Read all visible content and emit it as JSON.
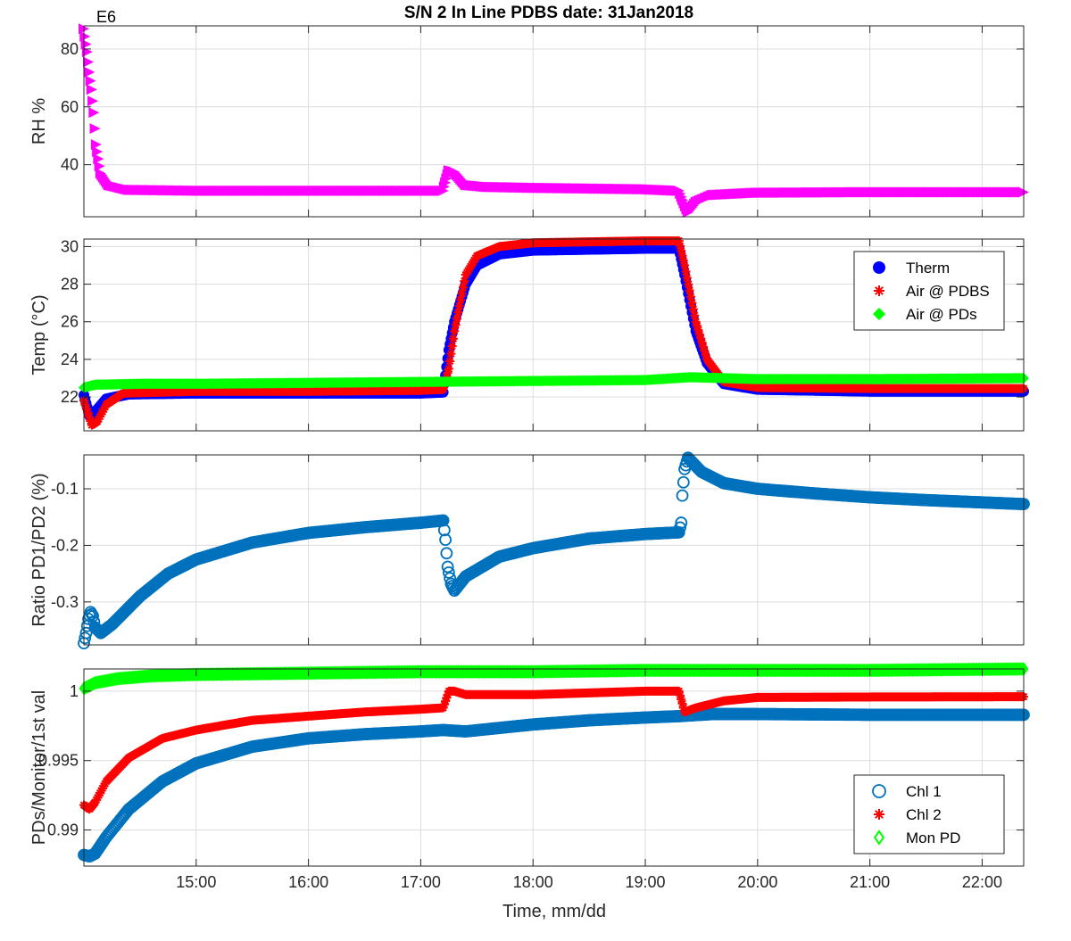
{
  "chart_data": {
    "type": "scatter",
    "title": "S/N 2 In Line PDBS date: 31Jan2018",
    "xlabel": "Time, mm/dd",
    "x_tick_labels": [
      "15:00",
      "16:00",
      "17:00",
      "18:00",
      "19:00",
      "20:00",
      "21:00",
      "22:00"
    ],
    "x_ticks_hours": [
      15,
      16,
      17,
      18,
      19,
      20,
      21,
      22
    ],
    "xlim_hours": [
      14.0,
      22.37
    ],
    "grid": true,
    "colors": {
      "magenta": "#ff00ff",
      "blue": "#0000ff",
      "red": "#ff0000",
      "green": "#00ff00",
      "steelblue": "#0072bd"
    },
    "panels": [
      {
        "ylabel": "RH %",
        "ylim": [
          22,
          88
        ],
        "yticks": [
          40,
          60,
          80
        ],
        "ytick_labels": [
          "40",
          "60",
          "80"
        ],
        "annotation": "E6",
        "legend": null,
        "series": [
          {
            "marker": "triangle-right",
            "color": "#ff00ff",
            "points": [
              [
                14.0,
                87
              ],
              [
                14.03,
                79
              ],
              [
                14.05,
                72
              ],
              [
                14.07,
                66
              ],
              [
                14.09,
                58
              ],
              [
                14.11,
                47
              ],
              [
                14.15,
                37
              ],
              [
                14.22,
                33
              ],
              [
                14.4,
                31.3
              ],
              [
                15.0,
                31
              ],
              [
                16.0,
                31
              ],
              [
                17.0,
                31
              ],
              [
                17.2,
                31
              ],
              [
                17.25,
                38
              ],
              [
                17.3,
                37.5
              ],
              [
                17.4,
                33
              ],
              [
                17.6,
                32.3
              ],
              [
                18.0,
                32
              ],
              [
                19.0,
                31.5
              ],
              [
                19.3,
                31
              ],
              [
                19.38,
                23.5
              ],
              [
                19.45,
                27
              ],
              [
                19.6,
                29.5
              ],
              [
                20.0,
                30.3
              ],
              [
                21.0,
                30.5
              ],
              [
                22.37,
                30.5
              ]
            ]
          }
        ]
      },
      {
        "ylabel": "Temp (°C)",
        "ylim": [
          20.2,
          30.4
        ],
        "yticks": [
          22,
          24,
          26,
          28,
          30
        ],
        "ytick_labels": [
          "22",
          "24",
          "26",
          "28",
          "30"
        ],
        "annotation": null,
        "legend": {
          "position": "top-right",
          "entries": [
            {
              "name": "Therm",
              "marker": "circle-filled",
              "color": "#0000ff"
            },
            {
              "name": "Air @ PDBS",
              "marker": "asterisk",
              "color": "#ff0000"
            },
            {
              "name": "Air @ PDs",
              "marker": "diamond-filled",
              "color": "#00ff00"
            }
          ]
        },
        "series": [
          {
            "name": "Therm",
            "marker": "circle-filled",
            "color": "#0000ff",
            "points": [
              [
                14.0,
                22.1
              ],
              [
                14.05,
                21.0
              ],
              [
                14.1,
                21.2
              ],
              [
                14.2,
                21.9
              ],
              [
                14.4,
                22.15
              ],
              [
                15.0,
                22.2
              ],
              [
                16.0,
                22.2
              ],
              [
                17.0,
                22.2
              ],
              [
                17.2,
                22.25
              ],
              [
                17.25,
                24.5
              ],
              [
                17.3,
                26.0
              ],
              [
                17.4,
                28.0
              ],
              [
                17.5,
                29.0
              ],
              [
                17.7,
                29.6
              ],
              [
                18.0,
                29.8
              ],
              [
                19.0,
                29.9
              ],
              [
                19.3,
                29.9
              ],
              [
                19.35,
                28.5
              ],
              [
                19.45,
                25.5
              ],
              [
                19.55,
                23.8
              ],
              [
                19.7,
                22.7
              ],
              [
                20.0,
                22.4
              ],
              [
                21.0,
                22.3
              ],
              [
                22.37,
                22.3
              ]
            ]
          },
          {
            "name": "Air @ PDBS",
            "marker": "asterisk",
            "color": "#ff0000",
            "points": [
              [
                14.0,
                21.8
              ],
              [
                14.07,
                20.5
              ],
              [
                14.12,
                20.7
              ],
              [
                14.2,
                21.6
              ],
              [
                14.35,
                22.2
              ],
              [
                15.0,
                22.3
              ],
              [
                16.0,
                22.3
              ],
              [
                17.0,
                22.35
              ],
              [
                17.2,
                22.4
              ],
              [
                17.25,
                23.5
              ],
              [
                17.3,
                25.5
              ],
              [
                17.4,
                28.5
              ],
              [
                17.5,
                29.5
              ],
              [
                17.7,
                30.0
              ],
              [
                18.0,
                30.2
              ],
              [
                19.0,
                30.3
              ],
              [
                19.3,
                30.3
              ],
              [
                19.35,
                29.0
              ],
              [
                19.45,
                26.0
              ],
              [
                19.55,
                24.0
              ],
              [
                19.7,
                22.8
              ],
              [
                20.0,
                22.5
              ],
              [
                21.0,
                22.45
              ],
              [
                22.37,
                22.45
              ]
            ]
          },
          {
            "name": "Air @ PDs",
            "marker": "diamond-filled",
            "color": "#00ff00",
            "points": [
              [
                14.0,
                22.5
              ],
              [
                14.1,
                22.65
              ],
              [
                14.5,
                22.7
              ],
              [
                15.0,
                22.7
              ],
              [
                16.0,
                22.75
              ],
              [
                17.0,
                22.8
              ],
              [
                18.0,
                22.85
              ],
              [
                19.0,
                22.9
              ],
              [
                19.4,
                23.05
              ],
              [
                20.0,
                22.95
              ],
              [
                21.0,
                22.95
              ],
              [
                22.37,
                23.0
              ]
            ]
          }
        ]
      },
      {
        "ylabel": "Ratio PD1/PD2 (%)",
        "ylim": [
          -0.376,
          -0.04
        ],
        "yticks": [
          -0.3,
          -0.2,
          -0.1
        ],
        "ytick_labels": [
          "-0.3",
          "-0.2",
          "-0.1"
        ],
        "annotation": null,
        "legend": null,
        "series": [
          {
            "marker": "circle-open",
            "color": "#0072bd",
            "points": [
              [
                14.0,
                -0.373
              ],
              [
                14.02,
                -0.355
              ],
              [
                14.04,
                -0.33
              ],
              [
                14.06,
                -0.318
              ],
              [
                14.08,
                -0.325
              ],
              [
                14.1,
                -0.345
              ],
              [
                14.15,
                -0.355
              ],
              [
                14.25,
                -0.34
              ],
              [
                14.5,
                -0.29
              ],
              [
                14.75,
                -0.25
              ],
              [
                15.0,
                -0.225
              ],
              [
                15.5,
                -0.195
              ],
              [
                16.0,
                -0.178
              ],
              [
                16.5,
                -0.168
              ],
              [
                17.0,
                -0.16
              ],
              [
                17.2,
                -0.156
              ],
              [
                17.22,
                -0.19
              ],
              [
                17.24,
                -0.238
              ],
              [
                17.27,
                -0.268
              ],
              [
                17.3,
                -0.28
              ],
              [
                17.4,
                -0.255
              ],
              [
                17.7,
                -0.22
              ],
              [
                18.0,
                -0.205
              ],
              [
                18.5,
                -0.188
              ],
              [
                19.0,
                -0.18
              ],
              [
                19.3,
                -0.177
              ],
              [
                19.32,
                -0.16
              ],
              [
                19.33,
                -0.112
              ],
              [
                19.35,
                -0.065
              ],
              [
                19.38,
                -0.045
              ],
              [
                19.5,
                -0.07
              ],
              [
                19.7,
                -0.09
              ],
              [
                20.0,
                -0.1
              ],
              [
                20.5,
                -0.108
              ],
              [
                21.0,
                -0.115
              ],
              [
                21.5,
                -0.12
              ],
              [
                22.37,
                -0.127
              ]
            ]
          }
        ]
      },
      {
        "ylabel": "PDs/Monitor/1st val",
        "ylim": [
          0.9874,
          1.0016
        ],
        "yticks": [
          0.99,
          0.995,
          1
        ],
        "ytick_labels": [
          "0.99",
          "0.995",
          "1"
        ],
        "annotation": null,
        "legend": {
          "position": "bottom-right",
          "entries": [
            {
              "name": "Chl 1",
              "marker": "circle-open",
              "color": "#0072bd"
            },
            {
              "name": "Chl 2",
              "marker": "asterisk",
              "color": "#ff0000"
            },
            {
              "name": "Mon PD",
              "marker": "diamond-open",
              "color": "#00ff00"
            }
          ]
        },
        "series": [
          {
            "name": "Chl 1",
            "marker": "circle-open",
            "color": "#0072bd",
            "points": [
              [
                14.0,
                0.9882
              ],
              [
                14.05,
                0.9881
              ],
              [
                14.1,
                0.9883
              ],
              [
                14.2,
                0.9895
              ],
              [
                14.4,
                0.9915
              ],
              [
                14.7,
                0.9935
              ],
              [
                15.0,
                0.9948
              ],
              [
                15.5,
                0.996
              ],
              [
                16.0,
                0.9966
              ],
              [
                16.5,
                0.9969
              ],
              [
                17.0,
                0.9971
              ],
              [
                17.2,
                0.9972
              ],
              [
                17.4,
                0.9971
              ],
              [
                18.0,
                0.9976
              ],
              [
                18.5,
                0.9979
              ],
              [
                19.0,
                0.9981
              ],
              [
                19.3,
                0.9982
              ],
              [
                19.6,
                0.99835
              ],
              [
                20.0,
                0.99835
              ],
              [
                21.0,
                0.9983
              ],
              [
                22.37,
                0.9983
              ]
            ]
          },
          {
            "name": "Chl 2",
            "marker": "asterisk",
            "color": "#ff0000",
            "points": [
              [
                14.0,
                0.9918
              ],
              [
                14.05,
                0.9915
              ],
              [
                14.1,
                0.992
              ],
              [
                14.2,
                0.9935
              ],
              [
                14.4,
                0.9952
              ],
              [
                14.7,
                0.9966
              ],
              [
                15.0,
                0.9972
              ],
              [
                15.5,
                0.9979
              ],
              [
                16.0,
                0.9982
              ],
              [
                16.5,
                0.9985
              ],
              [
                17.0,
                0.9987
              ],
              [
                17.2,
                0.9988
              ],
              [
                17.25,
                1.0
              ],
              [
                17.3,
                1.0
              ],
              [
                17.4,
                0.99975
              ],
              [
                18.0,
                0.99975
              ],
              [
                19.0,
                1.0
              ],
              [
                19.3,
                1.0
              ],
              [
                19.35,
                0.9985
              ],
              [
                19.45,
                0.9988
              ],
              [
                19.7,
                0.9993
              ],
              [
                20.0,
                0.99955
              ],
              [
                21.0,
                0.99958
              ],
              [
                22.37,
                0.9996
              ]
            ]
          },
          {
            "name": "Mon PD",
            "marker": "diamond-open",
            "color": "#00ff00",
            "points": [
              [
                14.0,
                1.0002
              ],
              [
                14.1,
                1.0006
              ],
              [
                14.3,
                1.0009
              ],
              [
                14.6,
                1.0011
              ],
              [
                15.0,
                1.0012
              ],
              [
                16.0,
                1.0013
              ],
              [
                17.0,
                1.0014
              ],
              [
                18.0,
                1.0014
              ],
              [
                19.0,
                1.0015
              ],
              [
                20.0,
                1.0015
              ],
              [
                21.0,
                1.0015
              ],
              [
                22.37,
                1.0016
              ]
            ]
          }
        ]
      }
    ]
  }
}
